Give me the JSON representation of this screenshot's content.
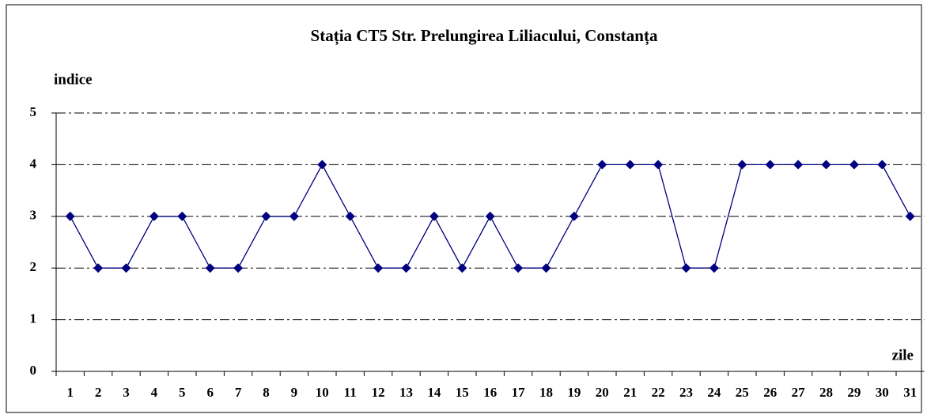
{
  "chart_data": {
    "type": "line",
    "title": "Stația CT5 Str. Prelungirea Liliacului, Constanța",
    "y_label": "indice",
    "x_label": "zile",
    "categories": [
      "1",
      "2",
      "3",
      "4",
      "5",
      "6",
      "7",
      "8",
      "9",
      "10",
      "11",
      "12",
      "13",
      "14",
      "15",
      "16",
      "17",
      "18",
      "19",
      "20",
      "21",
      "22",
      "23",
      "24",
      "25",
      "26",
      "27",
      "28",
      "29",
      "30",
      "31"
    ],
    "values": [
      3,
      2,
      2,
      3,
      3,
      2,
      2,
      3,
      3,
      4,
      3,
      2,
      2,
      3,
      2,
      3,
      2,
      2,
      3,
      4,
      4,
      4,
      2,
      2,
      4,
      4,
      4,
      4,
      4,
      4,
      3
    ],
    "color": "#000080",
    "ylim": [
      0,
      5
    ],
    "yticks": [
      0,
      1,
      2,
      3,
      4,
      5
    ],
    "grid": true
  }
}
